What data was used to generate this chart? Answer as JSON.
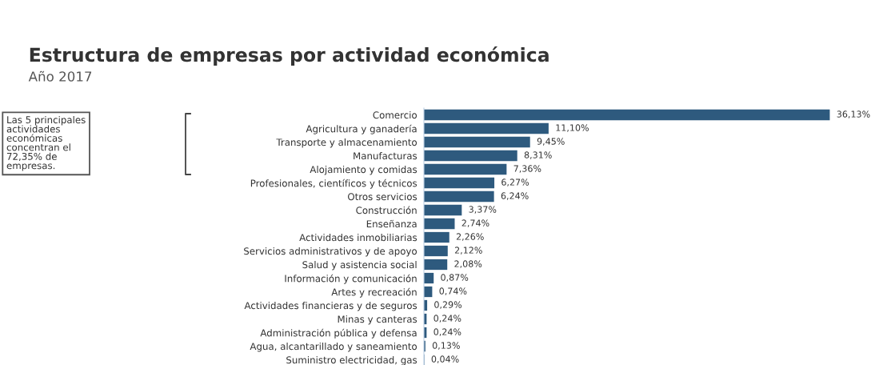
{
  "chart_data": {
    "type": "bar",
    "orientation": "horizontal",
    "title": "Estructura de empresas por actividad económica",
    "subtitle": "Año 2017",
    "categories": [
      "Comercio",
      "Agricultura y ganadería",
      "Transporte y almacenamiento",
      "Manufacturas",
      "Alojamiento y comidas",
      "Profesionales, científicos y técnicos",
      "Otros servicios",
      "Construcción",
      "Enseñanza",
      "Actividades inmobiliarias",
      "Servicios administrativos y de apoyo",
      "Salud y asistencia social",
      "Información y comunicación",
      "Artes y recreación",
      "Actividades financieras y de seguros",
      "Minas y canteras",
      "Administración pública y defensa",
      "Agua, alcantarillado y saneamiento",
      "Suministro electricidad, gas"
    ],
    "values": [
      36.13,
      11.1,
      9.45,
      8.31,
      7.36,
      6.27,
      6.24,
      3.37,
      2.74,
      2.26,
      2.12,
      2.08,
      0.87,
      0.74,
      0.29,
      0.24,
      0.24,
      0.13,
      0.04
    ],
    "value_labels": [
      "36,13%",
      "11,10%",
      "9,45%",
      "8,31%",
      "7,36%",
      "6,27%",
      "6,24%",
      "3,37%",
      "2,74%",
      "2,26%",
      "2,12%",
      "2,08%",
      "0,87%",
      "0,74%",
      "0,29%",
      "0,24%",
      "0,24%",
      "0,13%",
      "0,04%"
    ],
    "color": "#2e5a7e",
    "annotations": [
      "Las 5 principales\nactividades\neconómicas\nconcentran el\n72,35% de\nempresas."
    ]
  }
}
